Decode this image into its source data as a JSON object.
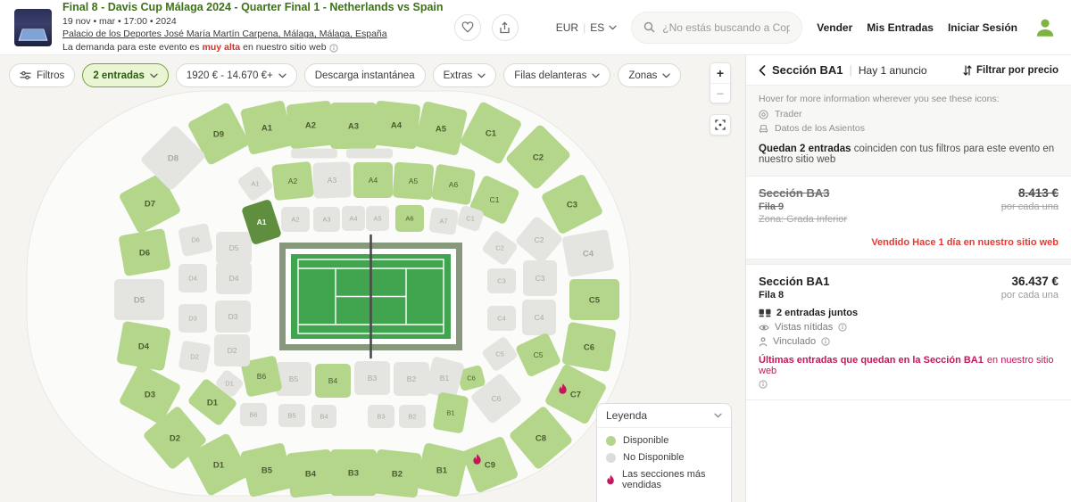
{
  "header": {
    "event": {
      "title": "Final 8 - Davis Cup Málaga 2024 - Quarter Final 1 - Netherlands vs Spain",
      "date_line": "19 nov • mar • 17:00 • 2024",
      "venue": "Palacio de los Deportes José María Martín Carpena, Málaga, Málaga, España",
      "demand_prefix": "La demanda para este evento es ",
      "demand_highlight": "muy alta",
      "demand_suffix": " en nuestro sitio web",
      "favorite_icon": "heart-icon",
      "share_icon": "share-icon",
      "demand_info_icon": "info-icon"
    },
    "nav": {
      "currency": "EUR",
      "language": "ES",
      "search_icon": "search-icon",
      "search_placeholder": "¿No estás buscando a Copa Dav...",
      "link_sell": "Vender",
      "link_tickets": "Mis Entradas",
      "link_login": "Iniciar Sesión",
      "avatar_icon": "person-avatar-icon"
    }
  },
  "filters": [
    {
      "label": "Filtros",
      "icon": "sliders-icon",
      "chevron": false,
      "active": false
    },
    {
      "label": "2 entradas",
      "icon": null,
      "chevron": true,
      "active": true
    },
    {
      "label": "1920 € - 14.670 €+",
      "icon": null,
      "chevron": true,
      "active": false
    },
    {
      "label": "Descarga instantánea",
      "icon": null,
      "chevron": false,
      "active": false
    },
    {
      "label": "Extras",
      "icon": null,
      "chevron": true,
      "active": false
    },
    {
      "label": "Filas delanteras",
      "icon": null,
      "chevron": true,
      "active": false
    },
    {
      "label": "Zonas",
      "icon": null,
      "chevron": true,
      "active": false
    }
  ],
  "map": {
    "controls": {
      "zoom_in": "+",
      "zoom_out": "−",
      "fit_icon": "fit-screen-icon"
    },
    "colors": {
      "available": "#b3d68a",
      "unavailable": "#e4e4e1",
      "selected": "#5e8e3e",
      "hot": "#c2185b",
      "label_available": "#4d5c31",
      "label_unavailable": "#a9a9a6",
      "label_selected": "#ffffff",
      "arena_fill": "#fbfbf9",
      "arena_stroke": "#e9e8e2",
      "court_green": "#41a44e",
      "court_surround": "#87997d"
    },
    "legend": {
      "title": "Leyenda",
      "items": [
        {
          "type": "available",
          "label": "Disponible"
        },
        {
          "type": "unavailable",
          "label": "No Disponible"
        },
        {
          "type": "hot",
          "label": "Las secciones más vendidas"
        }
      ]
    },
    "sections": [
      [
        "D9",
        245,
        150,
        52,
        54,
        -28,
        "a"
      ],
      [
        "A1",
        299,
        143,
        50,
        52,
        -13,
        "a"
      ],
      [
        "A2",
        348,
        140,
        50,
        50,
        -6,
        "a"
      ],
      [
        "A3",
        396,
        141,
        52,
        52,
        0,
        "a"
      ],
      [
        "A4",
        444,
        140,
        50,
        50,
        6,
        "a"
      ],
      [
        "A5",
        494,
        144,
        50,
        52,
        13,
        "a"
      ],
      [
        "C1",
        550,
        149,
        52,
        54,
        28,
        "a"
      ],
      [
        "C2",
        603,
        176,
        50,
        56,
        45,
        "a"
      ],
      [
        "C3",
        641,
        229,
        50,
        54,
        63,
        "a"
      ],
      [
        "C4",
        659,
        284,
        46,
        52,
        80,
        "u"
      ],
      [
        "C5",
        666,
        336,
        46,
        56,
        90,
        "a"
      ],
      [
        "C6",
        660,
        389,
        48,
        54,
        100,
        "a"
      ],
      [
        "C7",
        645,
        442,
        50,
        54,
        118,
        "a",
        "f"
      ],
      [
        "C8",
        606,
        491,
        52,
        52,
        140,
        "a"
      ],
      [
        "C9",
        549,
        521,
        50,
        50,
        158,
        "a",
        "f"
      ],
      [
        "B1",
        495,
        527,
        50,
        52,
        13,
        "a"
      ],
      [
        "B2",
        445,
        531,
        50,
        50,
        6,
        "a"
      ],
      [
        "B3",
        396,
        530,
        52,
        52,
        0,
        "a"
      ],
      [
        "B4",
        348,
        531,
        50,
        50,
        -6,
        "a"
      ],
      [
        "B5",
        299,
        527,
        50,
        52,
        -13,
        "a"
      ],
      [
        "D1",
        245,
        521,
        52,
        54,
        -28,
        "a"
      ],
      [
        "D2",
        196,
        491,
        52,
        52,
        -40,
        "a"
      ],
      [
        "D3",
        168,
        442,
        50,
        54,
        -62,
        "a"
      ],
      [
        "D4",
        161,
        388,
        48,
        54,
        -80,
        "a"
      ],
      [
        "D5",
        156,
        336,
        46,
        56,
        -90,
        "u"
      ],
      [
        "D6",
        162,
        283,
        46,
        52,
        -100,
        "a"
      ],
      [
        "D7",
        168,
        228,
        50,
        54,
        -118,
        "a"
      ],
      [
        "D8",
        194,
        177,
        50,
        56,
        -135,
        "u"
      ],
      [
        "A2",
        328,
        203,
        44,
        40,
        -6,
        "a"
      ],
      [
        "A3",
        372,
        202,
        42,
        40,
        -2,
        "u"
      ],
      [
        "A4",
        418,
        202,
        44,
        40,
        0,
        "a"
      ],
      [
        "A5",
        463,
        203,
        44,
        40,
        4,
        "a"
      ],
      [
        "A6",
        508,
        207,
        44,
        40,
        10,
        "a"
      ],
      [
        "C1",
        554,
        224,
        44,
        42,
        25,
        "a"
      ],
      [
        "C2",
        604,
        269,
        40,
        38,
        40,
        "u"
      ],
      [
        "C3",
        605,
        312,
        40,
        38,
        90,
        "u"
      ],
      [
        "C4",
        604,
        356,
        40,
        38,
        90,
        "u"
      ],
      [
        "C5",
        603,
        398,
        40,
        38,
        -25,
        "a"
      ],
      [
        "C6",
        528,
        424,
        28,
        24,
        -15,
        "a"
      ],
      [
        "C6",
        556,
        447,
        44,
        40,
        -38,
        "u"
      ],
      [
        "B1",
        498,
        424,
        36,
        42,
        15,
        "u"
      ],
      [
        "B2",
        461,
        425,
        40,
        38,
        0,
        "u"
      ],
      [
        "B3",
        417,
        424,
        40,
        38,
        0,
        "u"
      ],
      [
        "B4",
        373,
        427,
        40,
        38,
        0,
        "a"
      ],
      [
        "B5",
        329,
        425,
        40,
        38,
        0,
        "u"
      ],
      [
        "B6",
        293,
        422,
        40,
        40,
        -12,
        "a"
      ],
      [
        "D1",
        238,
        451,
        46,
        34,
        38,
        "a"
      ],
      [
        "D1",
        257,
        430,
        26,
        22,
        38,
        "u"
      ],
      [
        "D5",
        262,
        278,
        40,
        36,
        0,
        "u"
      ],
      [
        "D4",
        262,
        312,
        40,
        36,
        0,
        "u"
      ],
      [
        "D3",
        261,
        355,
        40,
        36,
        0,
        "u"
      ],
      [
        "D2",
        260,
        393,
        40,
        36,
        0,
        "u"
      ],
      [
        "D6",
        219,
        269,
        34,
        32,
        -12,
        "u"
      ],
      [
        "D4",
        216,
        312,
        32,
        32,
        0,
        "u"
      ],
      [
        "D3",
        216,
        357,
        32,
        32,
        0,
        "u"
      ],
      [
        "D2",
        218,
        400,
        32,
        32,
        10,
        "u"
      ],
      [
        "A1",
        286,
        206,
        30,
        30,
        -35,
        "u"
      ],
      [
        "A1",
        293,
        249,
        34,
        44,
        -18,
        "s"
      ],
      [
        "A2",
        331,
        246,
        32,
        28,
        0,
        "u"
      ],
      [
        "A3",
        366,
        246,
        30,
        28,
        0,
        "u"
      ],
      [
        "A4",
        396,
        245,
        26,
        28,
        0,
        "u"
      ],
      [
        "A5",
        423,
        245,
        26,
        28,
        0,
        "u"
      ],
      [
        "A6",
        459,
        245,
        32,
        30,
        0,
        "a"
      ],
      [
        "A7",
        497,
        248,
        30,
        28,
        8,
        "u"
      ],
      [
        "C1",
        527,
        245,
        26,
        24,
        18,
        "u"
      ],
      [
        "C2",
        560,
        278,
        32,
        28,
        35,
        "u"
      ],
      [
        "C3",
        562,
        315,
        32,
        28,
        0,
        "u"
      ],
      [
        "C4",
        562,
        357,
        32,
        28,
        0,
        "u"
      ],
      [
        "C5",
        560,
        397,
        32,
        28,
        -35,
        "u"
      ],
      [
        "B6",
        284,
        465,
        30,
        26,
        0,
        "u"
      ],
      [
        "B5",
        327,
        466,
        30,
        26,
        0,
        "u"
      ],
      [
        "B4",
        363,
        467,
        28,
        26,
        0,
        "u"
      ],
      [
        "B3",
        427,
        467,
        30,
        26,
        0,
        "u"
      ],
      [
        "B2",
        462,
        467,
        30,
        26,
        0,
        "u"
      ],
      [
        "B1",
        505,
        463,
        34,
        42,
        10,
        "a"
      ],
      [
        "",
        352,
        172,
        52,
        11,
        0,
        "u"
      ],
      [
        "",
        414,
        172,
        52,
        11,
        0,
        "u"
      ]
    ]
  },
  "panel": {
    "back_icon": "chevron-left-icon",
    "title": "Sección BA1",
    "divider": "|",
    "count_label": "Hay 1 anuncio",
    "sort_icon": "sort-arrows-icon",
    "sort_label": "Filtrar por precio",
    "info_heading": "Hover for more information wherever you see these icons:",
    "info_items": [
      {
        "icon": "trader-badge-icon",
        "label": "Trader"
      },
      {
        "icon": "seat-data-icon",
        "label": "Datos de los Asientos"
      }
    ],
    "summary_bold": "Quedan 2 entradas",
    "summary_rest": " coinciden con tus filtros para este evento en nuestro sitio web",
    "listings": [
      {
        "section": "Sección BA3",
        "row": "Fila 9",
        "zone": "Zona: Grada Inferior",
        "price": "8.413 €",
        "per_unit": "por cada una",
        "sold": true,
        "sold_note": "Vendido Hace 1 día en nuestro sitio web"
      },
      {
        "section": "Sección BA1",
        "row": "Fila 8",
        "price": "36.437 €",
        "per_unit": "por cada una",
        "sold": false,
        "features": [
          {
            "icon": "seats-icon",
            "label": "2 entradas juntos",
            "bold": true,
            "info": false
          },
          {
            "icon": "eye-icon",
            "label": "Vistas nítidas",
            "bold": false,
            "info": true
          },
          {
            "icon": "person-icon",
            "label": "Vinculado",
            "bold": false,
            "info": true
          }
        ],
        "warning_bold": "Últimas entradas que quedan en la Sección BA1",
        "warning_rest": " en nuestro sitio web",
        "warning_info": true
      }
    ]
  }
}
